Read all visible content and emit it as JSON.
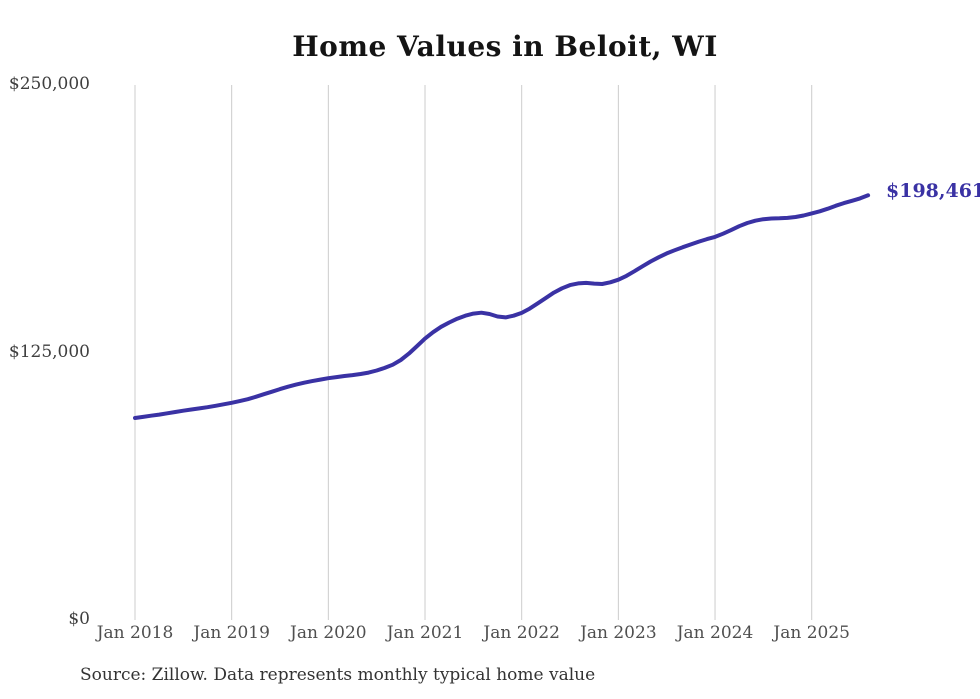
{
  "chart_data": {
    "type": "line",
    "title": "Home Values in Beloit, WI",
    "xlabel": "",
    "ylabel": "",
    "series_name": "Monthly typical home value",
    "x_start": "Jan 2018",
    "x_end": "Aug 2025",
    "x_tick_labels": [
      "Jan 2018",
      "Jan 2019",
      "Jan 2020",
      "Jan 2021",
      "Jan 2022",
      "Jan 2023",
      "Jan 2024",
      "Jan 2025"
    ],
    "y_ticks": [
      {
        "label": "$250,000",
        "value": 250000
      },
      {
        "label": "$125,000",
        "value": 125000
      },
      {
        "label": "$0",
        "value": 0
      }
    ],
    "ylim": [
      0,
      250000
    ],
    "grid": "vertical-only",
    "legend": "none",
    "line_color": "#3a32a4",
    "gridline_color": "#cccccc",
    "end_label": "$198,461",
    "end_value": 198461,
    "source_note": "Source: Zillow. Data represents monthly typical home value",
    "values": [
      94400,
      94900,
      95450,
      96000,
      96600,
      97200,
      97800,
      98350,
      98900,
      99450,
      100100,
      100800,
      101500,
      102300,
      103200,
      104300,
      105500,
      106700,
      107900,
      109000,
      110000,
      110900,
      111650,
      112350,
      113000,
      113500,
      114000,
      114450,
      114950,
      115600,
      116600,
      117800,
      119300,
      121500,
      124500,
      128000,
      131500,
      134500,
      137000,
      139000,
      140800,
      142200,
      143200,
      143600,
      143000,
      141800,
      141400,
      142200,
      143500,
      145500,
      148000,
      150500,
      153000,
      155000,
      156500,
      157300,
      157500,
      157200,
      157000,
      157800,
      159000,
      160800,
      163000,
      165300,
      167500,
      169500,
      171300,
      172800,
      174200,
      175500,
      176800,
      178000,
      179000,
      180500,
      182200,
      184000,
      185500,
      186600,
      187300,
      187600,
      187700,
      187900,
      188300,
      189000,
      190000,
      191000,
      192200,
      193600,
      194800,
      195900,
      197000,
      198461
    ]
  }
}
